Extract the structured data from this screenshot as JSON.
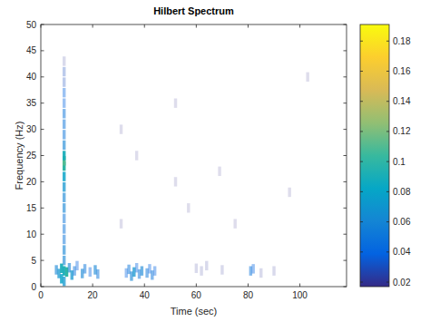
{
  "chart_data": {
    "type": "scatter",
    "title": "Hilbert Spectrum",
    "x_label": "Time (sec)",
    "y_label": "Frequency (Hz)",
    "xlim": [
      0,
      118
    ],
    "ylim": [
      0,
      50
    ],
    "xticks": [
      0,
      20,
      40,
      60,
      80,
      100
    ],
    "yticks": [
      0,
      5,
      10,
      15,
      20,
      25,
      30,
      35,
      40,
      45,
      50
    ],
    "clim": [
      0.017,
      0.191
    ],
    "cticks": [
      0.02,
      0.04,
      0.06,
      0.08,
      0.1,
      0.12,
      0.14,
      0.16,
      0.18
    ],
    "x": [
      9,
      9,
      9,
      9,
      9,
      9,
      9,
      9,
      9,
      9,
      9,
      9,
      9,
      9,
      9,
      9,
      9,
      9,
      9,
      9,
      9,
      9,
      9,
      6,
      7,
      8,
      8,
      10,
      11,
      12,
      13,
      14,
      16,
      17,
      19,
      21,
      22,
      33,
      34,
      35,
      36,
      37,
      38,
      39,
      41,
      42,
      43,
      44,
      60,
      62,
      64,
      70,
      81,
      82,
      85,
      90,
      31,
      31,
      37,
      52,
      52,
      57,
      69,
      75,
      96,
      103
    ],
    "y": [
      1,
      3,
      5,
      7,
      9,
      11,
      13,
      15,
      17,
      19,
      21,
      23,
      24,
      25,
      27,
      29,
      31,
      33,
      35,
      37,
      39,
      41,
      43,
      3.2,
      2.5,
      3.5,
      1.5,
      2.8,
      3.6,
      2.2,
      3.0,
      4.0,
      2.5,
      3.4,
      2.8,
      3.2,
      2.4,
      2.6,
      3.3,
      2.0,
      2.8,
      3.6,
      2.4,
      3.0,
      2.6,
      3.4,
      2.2,
      3.0,
      3.5,
      3.0,
      4.0,
      3.2,
      3.0,
      3.4,
      2.6,
      3.0,
      12,
      30,
      25,
      20,
      35,
      15,
      22,
      12,
      18,
      40
    ],
    "amplitude": [
      0.07,
      0.09,
      0.06,
      0.06,
      0.05,
      0.05,
      0.05,
      0.06,
      0.06,
      0.07,
      0.08,
      0.1,
      0.11,
      0.09,
      0.06,
      0.05,
      0.05,
      0.05,
      0.04,
      0.04,
      0.03,
      0.03,
      0.02,
      0.06,
      0.07,
      0.09,
      0.08,
      0.1,
      0.06,
      0.07,
      0.05,
      0.04,
      0.06,
      0.05,
      0.04,
      0.06,
      0.05,
      0.04,
      0.05,
      0.06,
      0.07,
      0.04,
      0.05,
      0.06,
      0.05,
      0.04,
      0.05,
      0.04,
      0.02,
      0.02,
      0.02,
      0.02,
      0.05,
      0.04,
      0.02,
      0.02,
      0.018,
      0.018,
      0.018,
      0.018,
      0.018,
      0.018,
      0.018,
      0.018,
      0.018,
      0.018
    ]
  }
}
